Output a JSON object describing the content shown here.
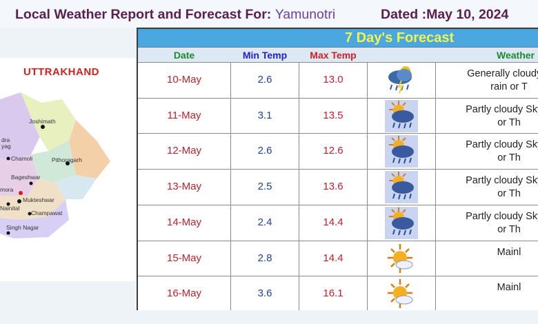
{
  "header": {
    "title_prefix": "Local Weather Report and Forecast For:",
    "place": "Yamunotri",
    "dated": "Dated :May 10, 2024"
  },
  "map": {
    "title": "UTTRAKHAND",
    "labels": [
      "Joshimath",
      "dra",
      "yag",
      "Chamoli",
      "Pithoragarh",
      "Bageshwar",
      "mora",
      "Mukteshwar",
      "Nainital",
      "Champawat",
      "Singh Nagar"
    ]
  },
  "forecast": {
    "title": "7 Day's Forecast",
    "headers": {
      "date": "Date",
      "min": "Min Temp",
      "max": "Max Temp",
      "weather": "Weather"
    },
    "header_colors": {
      "date": "#1a8a2a",
      "min": "#2020d0",
      "max": "#d02020",
      "weather": "#1a8a2a"
    },
    "rows": [
      {
        "date": "10-May",
        "min": "2.6",
        "max": "13.0",
        "icon": "cloud-rain-thunder-icon",
        "desc1": "Generally cloudy S",
        "desc2": "rain or T"
      },
      {
        "date": "11-May",
        "min": "3.1",
        "max": "13.5",
        "icon": "sun-cloud-rain-icon",
        "desc1": "Partly cloudy Sky w",
        "desc2": "or Th"
      },
      {
        "date": "12-May",
        "min": "2.6",
        "max": "12.6",
        "icon": "sun-cloud-rain-icon",
        "desc1": "Partly cloudy Sky w",
        "desc2": "or Th"
      },
      {
        "date": "13-May",
        "min": "2.5",
        "max": "13.6",
        "icon": "sun-cloud-rain-icon",
        "desc1": "Partly cloudy Sky w",
        "desc2": "or Th"
      },
      {
        "date": "14-May",
        "min": "2.4",
        "max": "14.4",
        "icon": "sun-cloud-rain-icon",
        "desc1": "Partly cloudy Sky w",
        "desc2": "or Th"
      },
      {
        "date": "15-May",
        "min": "2.8",
        "max": "14.4",
        "icon": "sun-cloud-icon",
        "desc1": "Mainl",
        "desc2": ""
      },
      {
        "date": "16-May",
        "min": "3.6",
        "max": "16.1",
        "icon": "sun-cloud-icon",
        "desc1": "Mainl",
        "desc2": ""
      }
    ]
  }
}
